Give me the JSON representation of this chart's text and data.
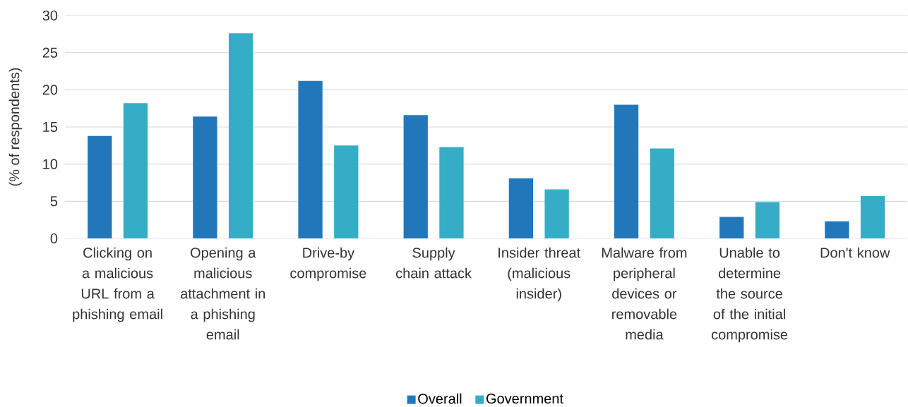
{
  "chart_data": {
    "type": "bar",
    "ylabel": "(% of respondents)",
    "categories": [
      "Clicking on a malicious URL from a phishing email",
      "Opening a malicious attachment in a phishing email",
      "Drive-by compromise",
      "Supply chain attack",
      "Insider threat (malicious insider)",
      "Malware from peripheral devices or removable media",
      "Unable to determine the source of the initial compromise",
      "Don't know"
    ],
    "series": [
      {
        "name": "Overall",
        "color": "#2277bb",
        "values": [
          13.8,
          16.4,
          21.2,
          16.6,
          8.1,
          18.0,
          2.9,
          2.3
        ]
      },
      {
        "name": "Government",
        "color": "#36adc7",
        "values": [
          18.2,
          27.6,
          12.5,
          12.3,
          6.6,
          12.1,
          4.9,
          5.7
        ]
      }
    ],
    "ylim": [
      0,
      30
    ],
    "yticks": [
      0,
      5,
      10,
      15,
      20,
      25,
      30
    ],
    "grid": "y",
    "legend": "bottom"
  }
}
